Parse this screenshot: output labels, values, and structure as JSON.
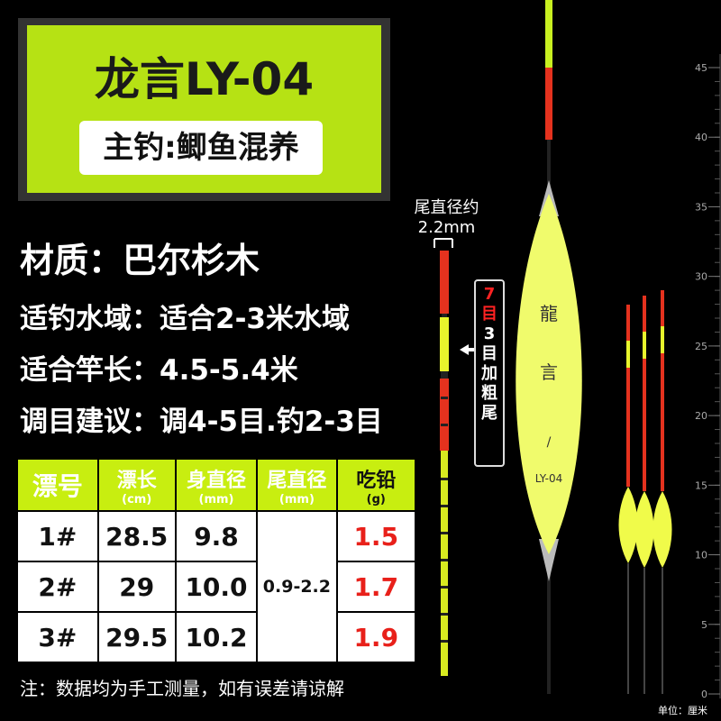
{
  "header": {
    "title": "龙言LY-04",
    "subtitle": "主钓:鲫鱼混养"
  },
  "specs": [
    "材质：巴尔杉木",
    "适钓水域：适合2-3米水域",
    "适合竿长：4.5-5.4米",
    "调目建议：调4-5目.钓2-3目"
  ],
  "table": {
    "columns": [
      {
        "name": "漂号"
      },
      {
        "name": "漂长",
        "unit": "(cm)"
      },
      {
        "name": "身直径",
        "unit": "(mm)"
      },
      {
        "name": "尾直径",
        "unit": "(mm)"
      },
      {
        "name": "吃铅",
        "unit": "(g)"
      }
    ],
    "rows": [
      [
        "1#",
        "28.5",
        "9.8",
        "1.5"
      ],
      [
        "2#",
        "29",
        "10.0",
        "1.7"
      ],
      [
        "3#",
        "29.5",
        "10.2",
        "1.9"
      ]
    ],
    "tail_diameter": "0.9-2.2"
  },
  "note": "注：数据均为手工测量，如有误差请谅解",
  "tail_callout": {
    "line1": "尾直径约",
    "line2": "2.2mm"
  },
  "side_label": {
    "red": "7目",
    "white": [
      "3",
      "目",
      "加",
      "粗",
      "尾"
    ]
  },
  "float_text": {
    "brand1": "龍",
    "brand2": "言",
    "mark": "/",
    "model": "LY-04"
  },
  "ruler": {
    "ticks": [
      0,
      5,
      10,
      15,
      20,
      25,
      30,
      35,
      40,
      45
    ],
    "unit": "单位：厘米"
  }
}
